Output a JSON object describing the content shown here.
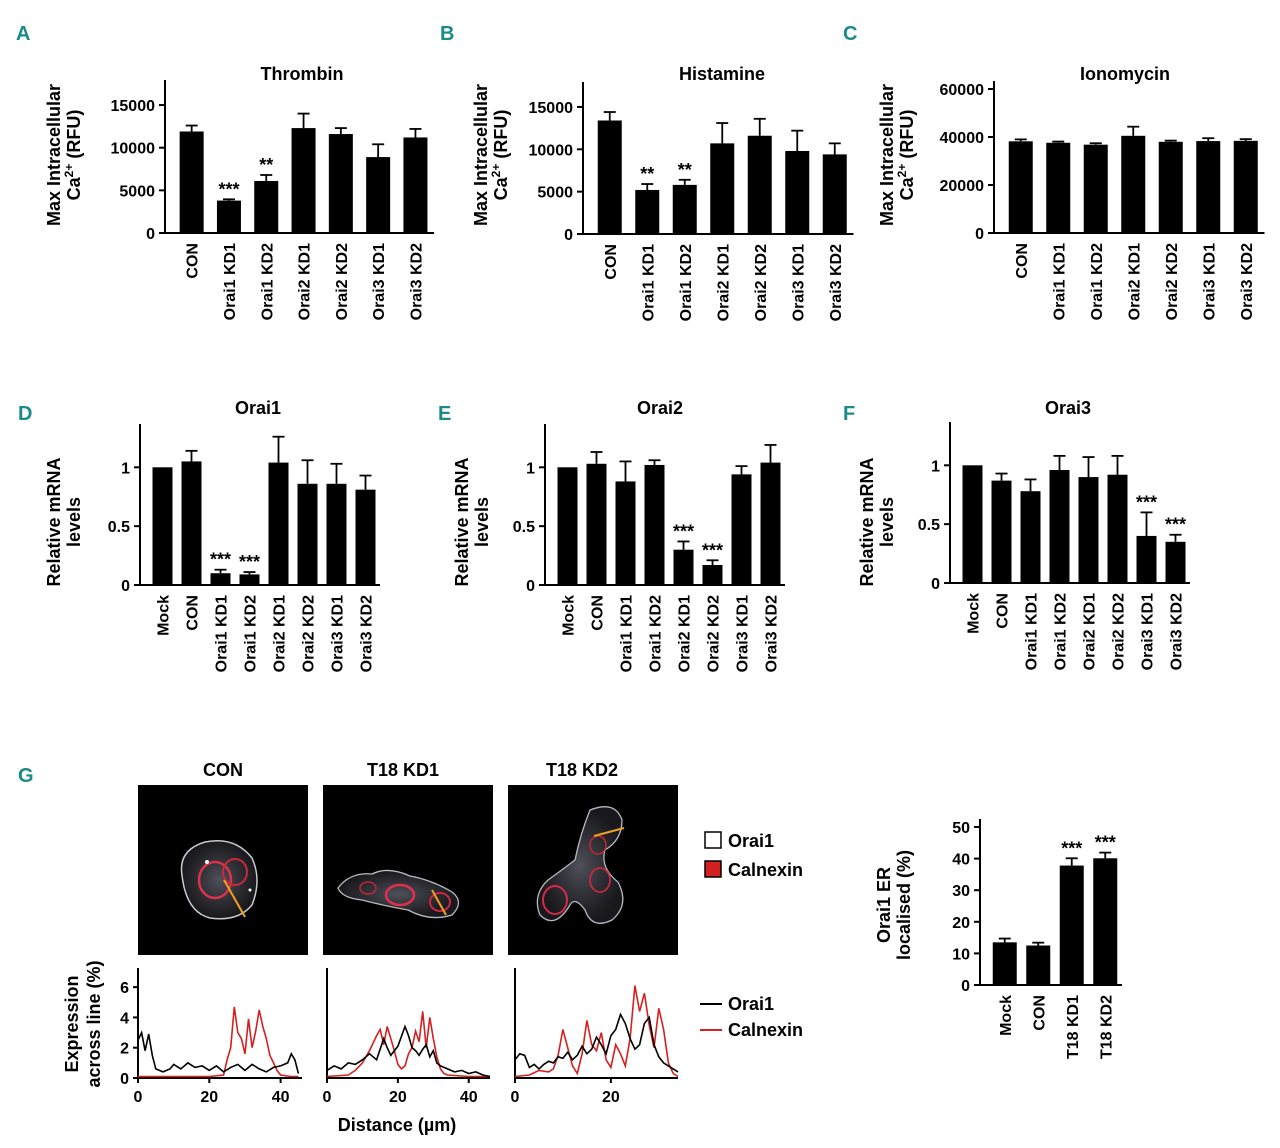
{
  "colors": {
    "bar": "#000000",
    "letter": "#1b8a8a",
    "orai1_line": "#000000",
    "calnexin_line": "#d42020",
    "calnexin_box": "#d42020",
    "scan_line": "#f0a020"
  },
  "chart_data": [
    {
      "panel": "A",
      "type": "bar",
      "title": "Thrombin",
      "ylabel": "Max Intracellular",
      "ylabel2": "Ca2+ (RFU)",
      "categories": [
        "CON",
        "Orai1 KD1",
        "Orai1 KD2",
        "Orai2 KD1",
        "Orai2 KD2",
        "Orai3 KD1",
        "Orai3 KD2"
      ],
      "values": [
        11900,
        3800,
        6100,
        12300,
        11600,
        8900,
        11200
      ],
      "errors": [
        700,
        150,
        700,
        1700,
        700,
        1500,
        1000
      ],
      "stars": [
        "",
        "***",
        "**",
        "",
        "",
        "",
        ""
      ],
      "ylim": [
        0,
        17000
      ],
      "yticks": [
        0,
        5000,
        10000,
        15000
      ]
    },
    {
      "panel": "B",
      "type": "bar",
      "title": "Histamine",
      "ylabel": "Max Intracellular",
      "ylabel2": "Ca2+ (RFU)",
      "categories": [
        "CON",
        "Orai1 KD1",
        "Orai1 KD2",
        "Orai2 KD1",
        "Orai2 KD2",
        "Orai3 KD1",
        "Orai3 KD2"
      ],
      "values": [
        13400,
        5200,
        5800,
        10700,
        11600,
        9800,
        9400
      ],
      "errors": [
        1000,
        700,
        600,
        2400,
        2000,
        2400,
        1300
      ],
      "stars": [
        "",
        "**",
        "**",
        "",
        "",
        "",
        ""
      ],
      "ylim": [
        0,
        17000
      ],
      "yticks": [
        0,
        5000,
        10000,
        15000
      ]
    },
    {
      "panel": "C",
      "type": "bar",
      "title": "Ionomycin",
      "ylabel": "Max Intracellular",
      "ylabel2": "Ca2+ (RFU)",
      "categories": [
        "CON",
        "Orai1 KD1",
        "Orai1 KD2",
        "Orai2 KD1",
        "Orai2 KD2",
        "Orai3 KD1",
        "Orai3 KD2"
      ],
      "values": [
        38200,
        37600,
        36800,
        40500,
        38000,
        38300,
        38400
      ],
      "errors": [
        800,
        500,
        600,
        3800,
        500,
        1200,
        700
      ],
      "stars": [
        "",
        "",
        "",
        "",
        "",
        "",
        ""
      ],
      "ylim": [
        0,
        60000
      ],
      "yticks": [
        0,
        20000,
        40000,
        60000
      ]
    },
    {
      "panel": "D",
      "type": "bar",
      "title": "Orai1",
      "ylabel": "Relative mRNA",
      "ylabel2": "levels",
      "categories": [
        "Mock",
        "CON",
        "Orai1 KD1",
        "Orai1 KD2",
        "Orai2 KD1",
        "Orai2 KD2",
        "Orai3 KD1",
        "Orai3 KD2"
      ],
      "values": [
        1.0,
        1.05,
        0.1,
        0.09,
        1.04,
        0.86,
        0.86,
        0.81
      ],
      "errors": [
        0,
        0.09,
        0.03,
        0.02,
        0.22,
        0.2,
        0.17,
        0.12
      ],
      "stars": [
        "",
        "",
        "***",
        "***",
        "",
        "",
        "",
        ""
      ],
      "ylim": [
        0,
        1.3
      ],
      "yticks": [
        0,
        0.5,
        1.0
      ]
    },
    {
      "panel": "E",
      "type": "bar",
      "title": "Orai2",
      "ylabel": "Relative mRNA",
      "ylabel2": "levels",
      "categories": [
        "Mock",
        "CON",
        "Orai1 KD1",
        "Orai1 KD2",
        "Orai2 KD1",
        "Orai2 KD2",
        "Orai3 KD1",
        "Orai3 KD2"
      ],
      "values": [
        1.0,
        1.03,
        0.88,
        1.02,
        0.3,
        0.17,
        0.94,
        1.04
      ],
      "errors": [
        0,
        0.1,
        0.17,
        0.04,
        0.07,
        0.04,
        0.07,
        0.15
      ],
      "stars": [
        "",
        "",
        "",
        "",
        "***",
        "***",
        "",
        ""
      ],
      "ylim": [
        0,
        1.3
      ],
      "yticks": [
        0,
        0.5,
        1.0
      ]
    },
    {
      "panel": "F",
      "type": "bar",
      "title": "Orai3",
      "ylabel": "Relative mRNA",
      "ylabel2": "levels",
      "categories": [
        "Mock",
        "CON",
        "Orai1 KD1",
        "Orai1 KD2",
        "Orai2 KD1",
        "Orai2 KD2",
        "Orai3 KD1",
        "Orai3 KD2"
      ],
      "values": [
        1.0,
        0.87,
        0.78,
        0.96,
        0.9,
        0.92,
        0.4,
        0.35
      ],
      "errors": [
        0,
        0.06,
        0.1,
        0.12,
        0.17,
        0.16,
        0.2,
        0.06
      ],
      "stars": [
        "",
        "",
        "",
        "",
        "",
        "",
        "***",
        "***"
      ],
      "ylim": [
        0,
        1.3
      ],
      "yticks": [
        0,
        0.5,
        1.0
      ]
    },
    {
      "panel": "G-right",
      "type": "bar",
      "title": "",
      "ylabel": "Orai1 ER",
      "ylabel2": "localised (%)",
      "categories": [
        "Mock",
        "CON",
        "T18 KD1",
        "T18 KD2"
      ],
      "values": [
        13.5,
        12.5,
        37.8,
        40.1
      ],
      "errors": [
        1.2,
        0.9,
        2.3,
        1.8
      ],
      "stars": [
        "",
        "",
        "***",
        "***"
      ],
      "ylim": [
        0,
        50
      ],
      "yticks": [
        0,
        10,
        20,
        30,
        40,
        50
      ]
    },
    {
      "panel": "G-profiles",
      "type": "line",
      "ylabel": "Expression",
      "ylabel2": "across line (%)",
      "xlabel": "Distance (µm)",
      "series_names": [
        "Orai1",
        "Calnexin"
      ],
      "ylim": [
        0,
        7
      ],
      "yticks": [
        0,
        2,
        4,
        6
      ],
      "plots": [
        {
          "xlim": [
            0,
            46
          ],
          "xticks": [
            0,
            20,
            40
          ],
          "orai1": [
            [
              0,
              2.5
            ],
            [
              1,
              3.0
            ],
            [
              2,
              1.8
            ],
            [
              3,
              2.9
            ],
            [
              4,
              1.5
            ],
            [
              5,
              0.6
            ],
            [
              7,
              0.4
            ],
            [
              9,
              0.6
            ],
            [
              10,
              0.9
            ],
            [
              12,
              0.6
            ],
            [
              14,
              1.0
            ],
            [
              16,
              0.7
            ],
            [
              18,
              0.8
            ],
            [
              20,
              0.5
            ],
            [
              22,
              0.8
            ],
            [
              24,
              0.4
            ],
            [
              26,
              0.7
            ],
            [
              28,
              0.9
            ],
            [
              30,
              0.5
            ],
            [
              32,
              0.9
            ],
            [
              34,
              0.6
            ],
            [
              36,
              0.4
            ],
            [
              38,
              0.7
            ],
            [
              40,
              0.8
            ],
            [
              42,
              1.0
            ],
            [
              43,
              1.6
            ],
            [
              44,
              1.2
            ],
            [
              45,
              0.3
            ]
          ],
          "calnexin": [
            [
              0,
              0.1
            ],
            [
              5,
              0.1
            ],
            [
              10,
              0.1
            ],
            [
              15,
              0.1
            ],
            [
              20,
              0.1
            ],
            [
              24,
              0.2
            ],
            [
              25,
              1.2
            ],
            [
              26,
              2.0
            ],
            [
              27,
              4.7
            ],
            [
              28,
              3.0
            ],
            [
              29,
              2.6
            ],
            [
              30,
              1.6
            ],
            [
              31,
              3.9
            ],
            [
              32,
              2.0
            ],
            [
              33,
              3.1
            ],
            [
              34,
              4.5
            ],
            [
              35,
              3.4
            ],
            [
              36,
              2.6
            ],
            [
              37,
              1.5
            ],
            [
              38,
              1.0
            ],
            [
              39,
              0.5
            ],
            [
              40,
              0.2
            ],
            [
              43,
              0.1
            ],
            [
              45,
              0.1
            ]
          ]
        },
        {
          "xlim": [
            0,
            46
          ],
          "xticks": [
            0,
            20,
            40
          ],
          "orai1": [
            [
              0,
              0.5
            ],
            [
              2,
              0.8
            ],
            [
              4,
              0.6
            ],
            [
              6,
              1.0
            ],
            [
              8,
              0.9
            ],
            [
              10,
              1.2
            ],
            [
              12,
              1.6
            ],
            [
              14,
              1.2
            ],
            [
              16,
              2.6
            ],
            [
              17,
              2.0
            ],
            [
              18,
              1.5
            ],
            [
              20,
              2.1
            ],
            [
              22,
              3.4
            ],
            [
              23,
              2.8
            ],
            [
              24,
              2.0
            ],
            [
              25,
              1.8
            ],
            [
              26,
              1.5
            ],
            [
              27,
              1.9
            ],
            [
              28,
              2.2
            ],
            [
              29,
              1.4
            ],
            [
              30,
              1.8
            ],
            [
              31,
              1.0
            ],
            [
              32,
              0.8
            ],
            [
              34,
              0.6
            ],
            [
              36,
              0.4
            ],
            [
              38,
              0.5
            ],
            [
              40,
              0.3
            ],
            [
              42,
              0.4
            ],
            [
              44,
              0.2
            ],
            [
              46,
              0.1
            ]
          ],
          "calnexin": [
            [
              0,
              0.1
            ],
            [
              6,
              0.2
            ],
            [
              8,
              0.5
            ],
            [
              10,
              1.0
            ],
            [
              12,
              1.8
            ],
            [
              14,
              2.8
            ],
            [
              15,
              3.2
            ],
            [
              16,
              2.2
            ],
            [
              17,
              3.4
            ],
            [
              18,
              2.6
            ],
            [
              19,
              1.8
            ],
            [
              20,
              0.9
            ],
            [
              21,
              0.6
            ],
            [
              22,
              0.8
            ],
            [
              23,
              1.6
            ],
            [
              24,
              2.0
            ],
            [
              25,
              3.1
            ],
            [
              26,
              2.4
            ],
            [
              27,
              4.4
            ],
            [
              28,
              2.0
            ],
            [
              29,
              4.0
            ],
            [
              30,
              2.6
            ],
            [
              31,
              1.4
            ],
            [
              32,
              0.6
            ],
            [
              33,
              0.3
            ],
            [
              34,
              0.2
            ],
            [
              40,
              0.1
            ],
            [
              46,
              0.1
            ]
          ]
        },
        {
          "xlim": [
            0,
            34
          ],
          "xticks": [
            0,
            20
          ],
          "orai1": [
            [
              0,
              1.2
            ],
            [
              1,
              1.6
            ],
            [
              2,
              1.5
            ],
            [
              3,
              0.7
            ],
            [
              4,
              0.9
            ],
            [
              5,
              0.6
            ],
            [
              6,
              0.9
            ],
            [
              7,
              1.1
            ],
            [
              8,
              1.0
            ],
            [
              9,
              1.4
            ],
            [
              10,
              1.3
            ],
            [
              11,
              1.7
            ],
            [
              12,
              1.2
            ],
            [
              13,
              1.5
            ],
            [
              14,
              2.1
            ],
            [
              15,
              1.6
            ],
            [
              16,
              1.9
            ],
            [
              17,
              2.7
            ],
            [
              18,
              2.2
            ],
            [
              19,
              1.6
            ],
            [
              20,
              2.8
            ],
            [
              21,
              3.2
            ],
            [
              22,
              4.2
            ],
            [
              23,
              3.6
            ],
            [
              24,
              2.6
            ],
            [
              25,
              1.9
            ],
            [
              26,
              2.2
            ],
            [
              27,
              3.6
            ],
            [
              28,
              4.0
            ],
            [
              29,
              2.2
            ],
            [
              30,
              1.4
            ],
            [
              31,
              1.0
            ],
            [
              32,
              0.8
            ],
            [
              33,
              0.6
            ],
            [
              34,
              0.4
            ]
          ],
          "calnexin": [
            [
              0,
              0.1
            ],
            [
              3,
              0.2
            ],
            [
              5,
              0.5
            ],
            [
              7,
              0.4
            ],
            [
              8,
              0.6
            ],
            [
              9,
              1.5
            ],
            [
              10,
              3.2
            ],
            [
              11,
              2.0
            ],
            [
              12,
              0.8
            ],
            [
              13,
              0.3
            ],
            [
              14,
              1.6
            ],
            [
              15,
              3.8
            ],
            [
              16,
              2.2
            ],
            [
              17,
              1.8
            ],
            [
              18,
              3.0
            ],
            [
              19,
              1.2
            ],
            [
              20,
              0.7
            ],
            [
              21,
              2.2
            ],
            [
              22,
              1.6
            ],
            [
              23,
              0.8
            ],
            [
              24,
              2.6
            ],
            [
              25,
              6.1
            ],
            [
              26,
              4.4
            ],
            [
              27,
              5.6
            ],
            [
              28,
              3.5
            ],
            [
              29,
              2.0
            ],
            [
              30,
              4.6
            ],
            [
              31,
              3.2
            ],
            [
              32,
              1.0
            ],
            [
              33,
              0.3
            ],
            [
              34,
              0.1
            ]
          ]
        }
      ]
    }
  ],
  "letters": {
    "a": "A",
    "b": "B",
    "c": "C",
    "d": "D",
    "e": "E",
    "f": "F",
    "g": "G"
  },
  "micrographs": {
    "con_title": "CON",
    "kd1_title": "T18 KD1",
    "kd2_title": "T18 KD2"
  },
  "legend": {
    "orai1": "Orai1",
    "calnexin": "Calnexin"
  }
}
